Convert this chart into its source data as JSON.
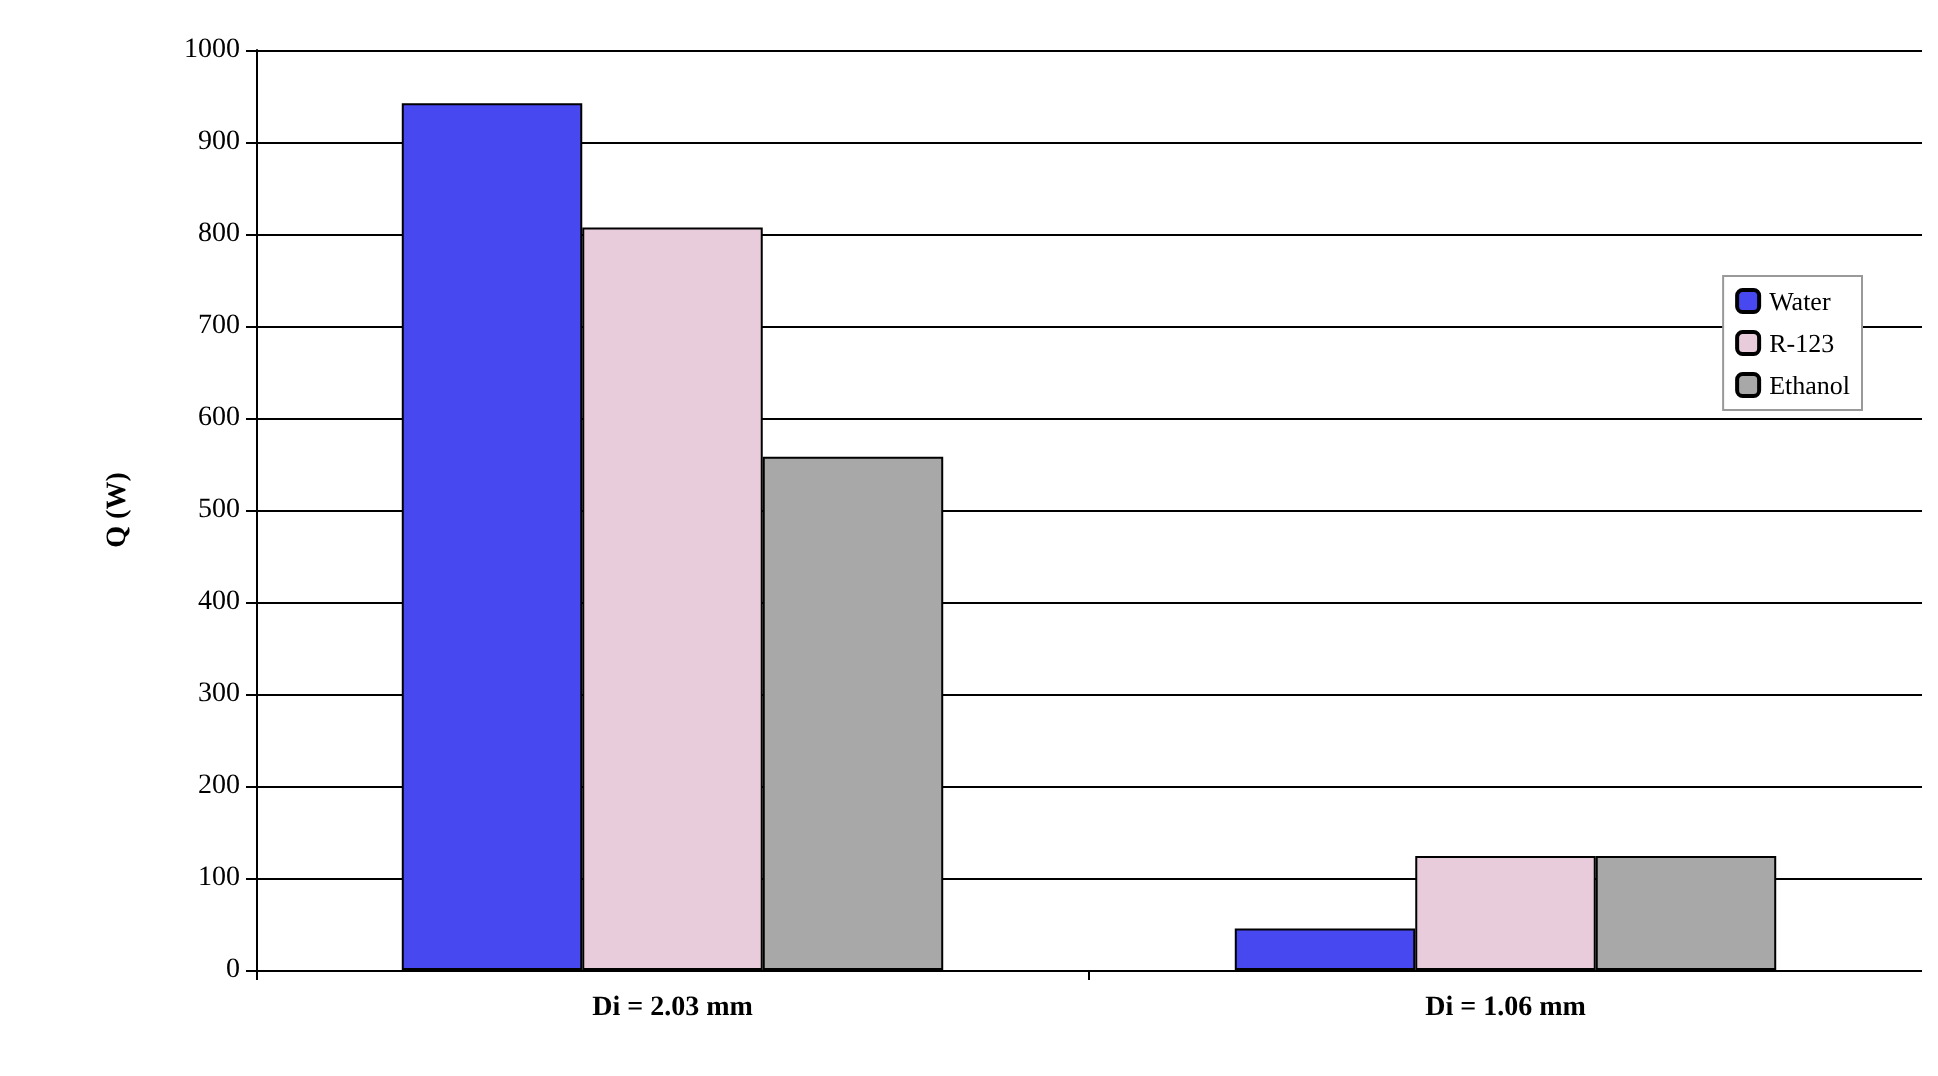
{
  "chart_data": {
    "type": "bar",
    "ylabel": "Q (W)",
    "categories": [
      "Di = 2.03 mm",
      "Di = 1.06 mm"
    ],
    "series": [
      {
        "name": "Water",
        "color": "#4848f0",
        "values": [
          942,
          45
        ]
      },
      {
        "name": "R-123",
        "color": "#e8ccdc",
        "values": [
          807,
          124
        ]
      },
      {
        "name": "Ethanol",
        "color": "#a8a8a8",
        "values": [
          558,
          124
        ]
      }
    ],
    "ylim": [
      0,
      1000
    ],
    "yticks": [
      0,
      100,
      200,
      300,
      400,
      500,
      600,
      700,
      800,
      900,
      1000
    ],
    "grid": "y",
    "legend": "right"
  }
}
